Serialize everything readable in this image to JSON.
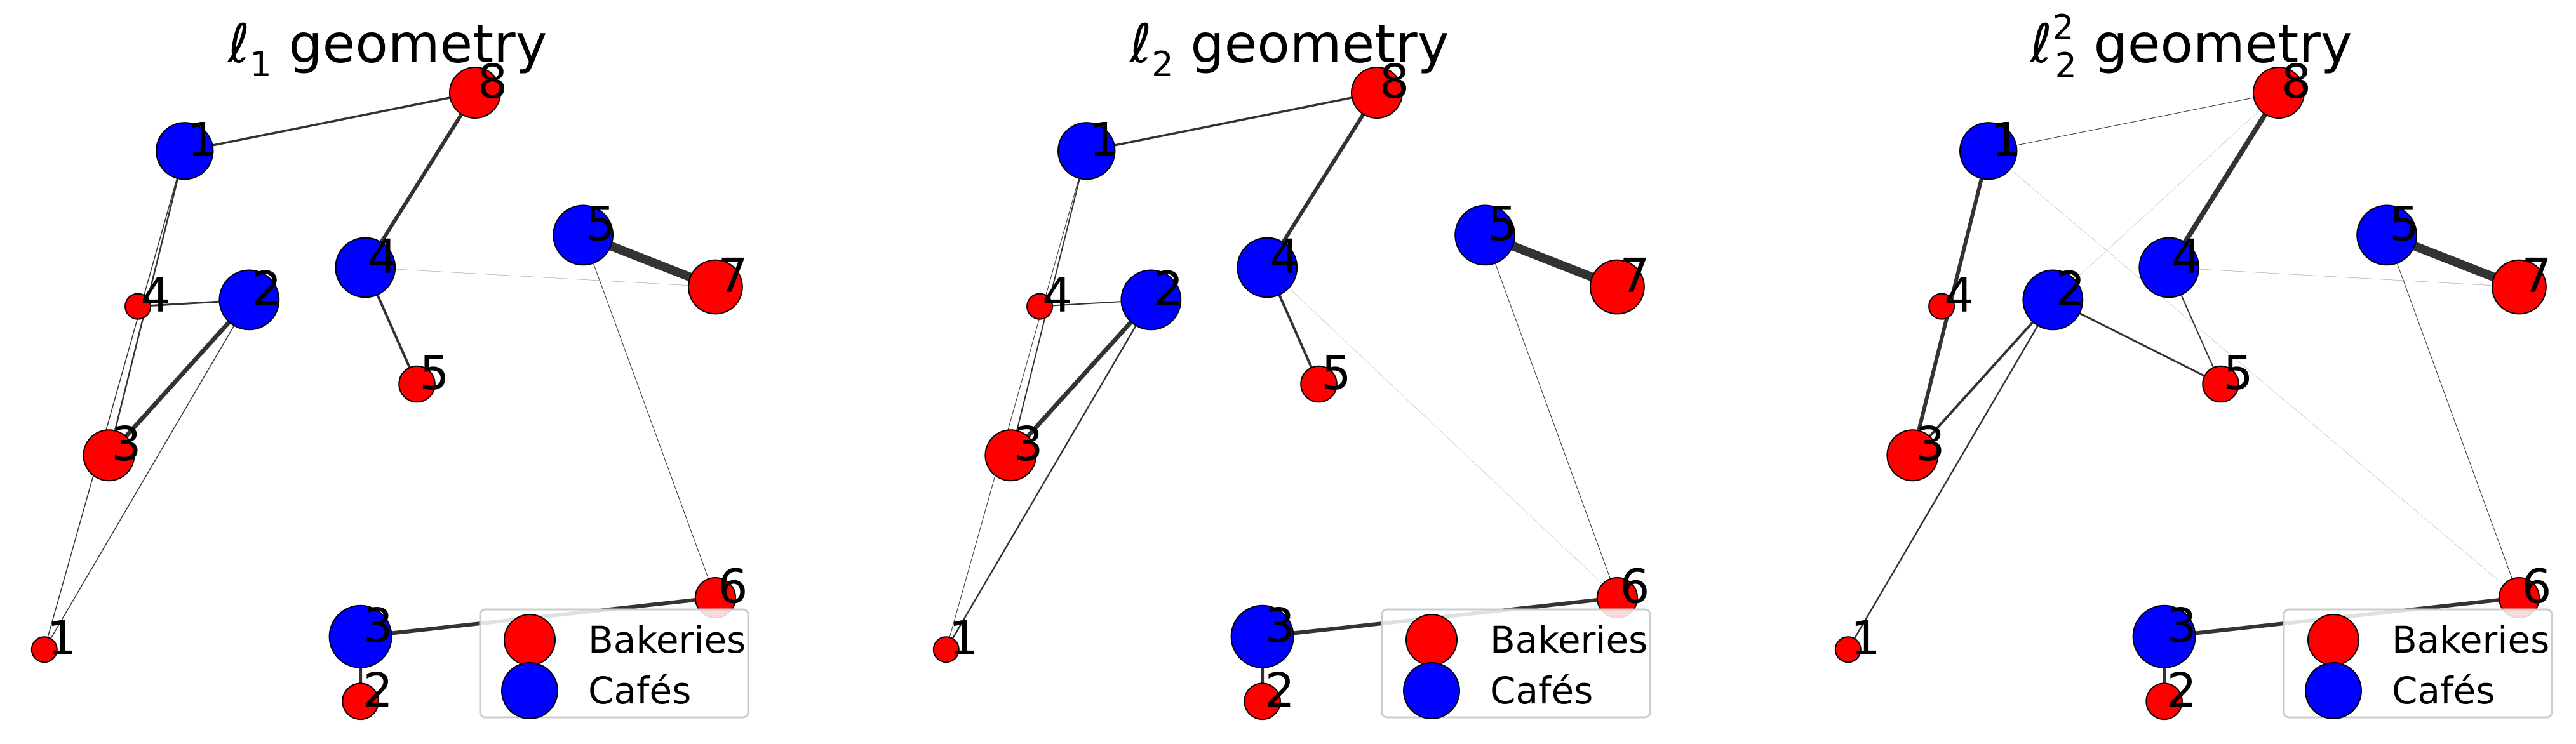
{
  "colors": {
    "bakeries": "#ff0000",
    "cafes": "#0000ff",
    "edge": "#333333",
    "legend_frame": "#cccccc"
  },
  "chart_data": [
    {
      "type": "scatter",
      "title_main": "ℓ",
      "title_sub": "1",
      "title_sup": "",
      "title_rest": " geometry",
      "legend": [
        "Bakeries",
        "Cafés"
      ],
      "legend_placement": "lower-right",
      "bakeries": [
        {
          "label": "1",
          "x": 0.07,
          "y": 0.09,
          "mass": 1
        },
        {
          "label": "2",
          "x": 2.03,
          "y": 0.01,
          "mass": 2
        },
        {
          "label": "3",
          "x": 0.47,
          "y": 0.39,
          "mass": 4
        },
        {
          "label": "4",
          "x": 0.65,
          "y": 0.62,
          "mass": 1
        },
        {
          "label": "5",
          "x": 2.38,
          "y": 0.5,
          "mass": 2
        },
        {
          "label": "6",
          "x": 4.23,
          "y": 0.17,
          "mass": 2.5
        },
        {
          "label": "7",
          "x": 4.23,
          "y": 0.65,
          "mass": 4.5
        },
        {
          "label": "8",
          "x": 2.74,
          "y": 0.95,
          "mass": 4
        }
      ],
      "cafes": [
        {
          "label": "1",
          "x": 0.94,
          "y": 0.86,
          "mass": 5
        },
        {
          "label": "2",
          "x": 1.34,
          "y": 0.63,
          "mass": 5.5
        },
        {
          "label": "3",
          "x": 2.03,
          "y": 0.11,
          "mass": 6
        },
        {
          "label": "4",
          "x": 2.06,
          "y": 0.68,
          "mass": 5.5
        },
        {
          "label": "5",
          "x": 3.41,
          "y": 0.73,
          "mass": 5.5
        }
      ],
      "edges": [
        {
          "from": 1,
          "to": 8,
          "weight": 3.5
        },
        {
          "from": 1,
          "to": 3,
          "weight": 2.5
        },
        {
          "from": 1,
          "to": 1,
          "weight": 1.5
        },
        {
          "from": 2,
          "to": 3,
          "weight": 7
        },
        {
          "from": 2,
          "to": 4,
          "weight": 3
        },
        {
          "from": 2,
          "to": 1,
          "weight": 1.5
        },
        {
          "from": 3,
          "to": 6,
          "weight": 6
        },
        {
          "from": 3,
          "to": 2,
          "weight": 5
        },
        {
          "from": 4,
          "to": 8,
          "weight": 6
        },
        {
          "from": 4,
          "to": 5,
          "weight": 4
        },
        {
          "from": 4,
          "to": 7,
          "weight": 0.5
        },
        {
          "from": 5,
          "to": 7,
          "weight": 14
        },
        {
          "from": 5,
          "to": 6,
          "weight": 1
        }
      ]
    },
    {
      "type": "scatter",
      "title_main": "ℓ",
      "title_sub": "2",
      "title_sup": "",
      "title_rest": " geometry",
      "legend": [
        "Bakeries",
        "Cafés"
      ],
      "legend_placement": "lower-right",
      "bakeries": [
        {
          "label": "1",
          "x": 0.07,
          "y": 0.09,
          "mass": 1
        },
        {
          "label": "2",
          "x": 2.03,
          "y": 0.01,
          "mass": 2
        },
        {
          "label": "3",
          "x": 0.47,
          "y": 0.39,
          "mass": 4
        },
        {
          "label": "4",
          "x": 0.65,
          "y": 0.62,
          "mass": 1
        },
        {
          "label": "5",
          "x": 2.38,
          "y": 0.5,
          "mass": 2
        },
        {
          "label": "6",
          "x": 4.23,
          "y": 0.17,
          "mass": 2.5
        },
        {
          "label": "7",
          "x": 4.23,
          "y": 0.65,
          "mass": 4.5
        },
        {
          "label": "8",
          "x": 2.74,
          "y": 0.95,
          "mass": 4
        }
      ],
      "cafes": [
        {
          "label": "1",
          "x": 0.94,
          "y": 0.86,
          "mass": 5
        },
        {
          "label": "2",
          "x": 1.34,
          "y": 0.63,
          "mass": 5.5
        },
        {
          "label": "3",
          "x": 2.03,
          "y": 0.11,
          "mass": 6
        },
        {
          "label": "4",
          "x": 2.06,
          "y": 0.68,
          "mass": 5.5
        },
        {
          "label": "5",
          "x": 3.41,
          "y": 0.73,
          "mass": 5.5
        }
      ],
      "edges": [
        {
          "from": 1,
          "to": 8,
          "weight": 3.5
        },
        {
          "from": 1,
          "to": 3,
          "weight": 2
        },
        {
          "from": 1,
          "to": 1,
          "weight": 1
        },
        {
          "from": 2,
          "to": 3,
          "weight": 7
        },
        {
          "from": 2,
          "to": 4,
          "weight": 2
        },
        {
          "from": 2,
          "to": 1,
          "weight": 2.5
        },
        {
          "from": 3,
          "to": 6,
          "weight": 6
        },
        {
          "from": 3,
          "to": 2,
          "weight": 5
        },
        {
          "from": 4,
          "to": 8,
          "weight": 6
        },
        {
          "from": 4,
          "to": 5,
          "weight": 4
        },
        {
          "from": 4,
          "to": 6,
          "weight": 0.5
        },
        {
          "from": 5,
          "to": 7,
          "weight": 14
        },
        {
          "from": 5,
          "to": 6,
          "weight": 1
        }
      ]
    },
    {
      "type": "scatter",
      "title_main": "ℓ",
      "title_sub": "2",
      "title_sup": "2",
      "title_rest": " geometry",
      "legend": [
        "Bakeries",
        "Cafés"
      ],
      "legend_placement": "lower-right",
      "bakeries": [
        {
          "label": "1",
          "x": 0.07,
          "y": 0.09,
          "mass": 1
        },
        {
          "label": "2",
          "x": 2.03,
          "y": 0.01,
          "mass": 2
        },
        {
          "label": "3",
          "x": 0.47,
          "y": 0.39,
          "mass": 4
        },
        {
          "label": "4",
          "x": 0.65,
          "y": 0.62,
          "mass": 1
        },
        {
          "label": "5",
          "x": 2.38,
          "y": 0.5,
          "mass": 2
        },
        {
          "label": "6",
          "x": 4.23,
          "y": 0.17,
          "mass": 2.5
        },
        {
          "label": "7",
          "x": 4.23,
          "y": 0.65,
          "mass": 4.5
        },
        {
          "label": "8",
          "x": 2.74,
          "y": 0.95,
          "mass": 4
        }
      ],
      "cafes": [
        {
          "label": "1",
          "x": 0.94,
          "y": 0.86,
          "mass": 5
        },
        {
          "label": "2",
          "x": 1.34,
          "y": 0.63,
          "mass": 5.5
        },
        {
          "label": "3",
          "x": 2.03,
          "y": 0.11,
          "mass": 6
        },
        {
          "label": "4",
          "x": 2.06,
          "y": 0.68,
          "mass": 5.5
        },
        {
          "label": "5",
          "x": 3.41,
          "y": 0.73,
          "mass": 5.5
        }
      ],
      "edges": [
        {
          "from": 1,
          "to": 8,
          "weight": 1
        },
        {
          "from": 1,
          "to": 3,
          "weight": 6
        },
        {
          "from": 1,
          "to": 6,
          "weight": 0.5
        },
        {
          "from": 2,
          "to": 3,
          "weight": 4
        },
        {
          "from": 2,
          "to": 1,
          "weight": 2.5
        },
        {
          "from": 2,
          "to": 5,
          "weight": 3
        },
        {
          "from": 2,
          "to": 8,
          "weight": 0.5
        },
        {
          "from": 3,
          "to": 6,
          "weight": 6
        },
        {
          "from": 3,
          "to": 2,
          "weight": 5
        },
        {
          "from": 4,
          "to": 8,
          "weight": 8
        },
        {
          "from": 4,
          "to": 5,
          "weight": 2
        },
        {
          "from": 4,
          "to": 7,
          "weight": 0.5
        },
        {
          "from": 5,
          "to": 7,
          "weight": 14
        },
        {
          "from": 5,
          "to": 6,
          "weight": 1
        }
      ]
    }
  ]
}
